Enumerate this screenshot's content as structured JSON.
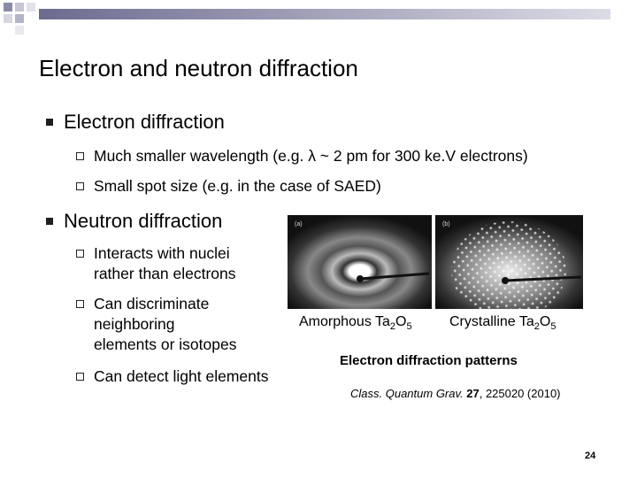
{
  "header": {
    "title": "Electron and neutron diffraction"
  },
  "bullets": [
    {
      "text": "Electron diffraction",
      "items": [
        {
          "lines": [
            "Much smaller wavelength (e.g. λ ~ 2 pm for 300 ke.V electrons)"
          ]
        },
        {
          "lines": [
            "Small spot size (e.g. in the case of SAED)"
          ]
        }
      ]
    },
    {
      "text": "Neutron diffraction",
      "items": [
        {
          "lines": [
            "Interacts with nuclei",
            "rather than electrons"
          ]
        },
        {
          "lines": [
            "Can discriminate",
            "neighboring",
            "elements or isotopes"
          ]
        },
        {
          "lines": [
            "Can detect light elements"
          ]
        }
      ]
    }
  ],
  "figure": {
    "panels": [
      {
        "tag": "(a)",
        "caption": [
          "Amorphous Ta",
          "2",
          "O",
          "5"
        ]
      },
      {
        "tag": "(b)",
        "caption": [
          "Crystalline Ta",
          "2",
          "O",
          "5"
        ]
      }
    ],
    "caption": "Electron diffraction patterns",
    "citation": [
      "Class. Quantum Grav. ",
      "27",
      ", 225020 (2010)"
    ]
  },
  "footer": {
    "page_number": "24"
  }
}
